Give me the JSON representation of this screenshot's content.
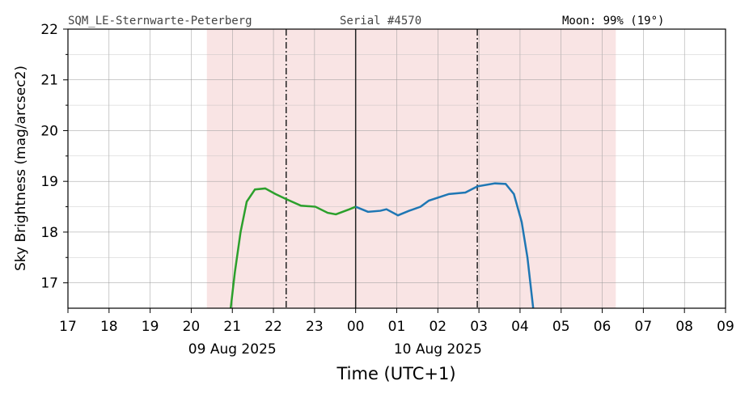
{
  "chart_data": {
    "type": "line",
    "header": {
      "station": "SQM_LE-Sternwarte-Peterberg",
      "serial": "Serial #4570",
      "moon": "Moon: 99% (19°)"
    },
    "x_label": "Time (UTC+1)",
    "y_label": "Sky Brightness (mag/arcsec2)",
    "xlim": [
      17,
      33
    ],
    "ylim": [
      16.5,
      22
    ],
    "xticks": [
      17,
      18,
      19,
      20,
      21,
      22,
      23,
      {
        "value": 24,
        "label": "00"
      },
      {
        "value": 25,
        "label": "01"
      },
      {
        "value": 26,
        "label": "02"
      },
      {
        "value": 27,
        "label": "03"
      },
      {
        "value": 28,
        "label": "04"
      },
      {
        "value": 29,
        "label": "05"
      },
      {
        "value": 30,
        "label": "06"
      },
      {
        "value": 31,
        "label": "07"
      },
      {
        "value": 32,
        "label": "08"
      },
      {
        "value": 33,
        "label": "09"
      }
    ],
    "date_labels": [
      {
        "value": 21,
        "label": "09 Aug 2025"
      },
      {
        "value": 26,
        "label": "10 Aug 2025"
      }
    ],
    "yticks": [
      17,
      18,
      19,
      20,
      21,
      22
    ],
    "y_minor_ticks": [
      17.5,
      18.5,
      19.5,
      20.5,
      21.5
    ],
    "grid": true,
    "night_span": [
      20.38,
      30.33
    ],
    "night_color": "#f9e4e4",
    "dashdot_lines": [
      22.31,
      26.96
    ],
    "solid_lines": [
      24
    ],
    "series": [
      {
        "color": "#2ca02c",
        "x": [
          20.96,
          21.06,
          21.2,
          21.35,
          21.55,
          21.8,
          22.05,
          22.31,
          22.67,
          23.02,
          23.32,
          23.52,
          23.85,
          24.0
        ],
        "values": [
          16.5,
          17.2,
          18.0,
          18.6,
          18.84,
          18.86,
          18.75,
          18.65,
          18.52,
          18.5,
          18.38,
          18.35,
          18.45,
          18.5
        ]
      },
      {
        "color": "#1f77b4",
        "x": [
          24.0,
          24.3,
          24.6,
          24.75,
          25.03,
          25.3,
          25.58,
          25.78,
          26.27,
          26.67,
          26.96,
          27.39,
          27.65,
          27.85,
          28.04,
          28.18,
          28.32
        ],
        "values": [
          18.5,
          18.4,
          18.42,
          18.45,
          18.33,
          18.42,
          18.5,
          18.62,
          18.75,
          18.78,
          18.9,
          18.96,
          18.95,
          18.75,
          18.2,
          17.5,
          16.5
        ]
      }
    ]
  }
}
